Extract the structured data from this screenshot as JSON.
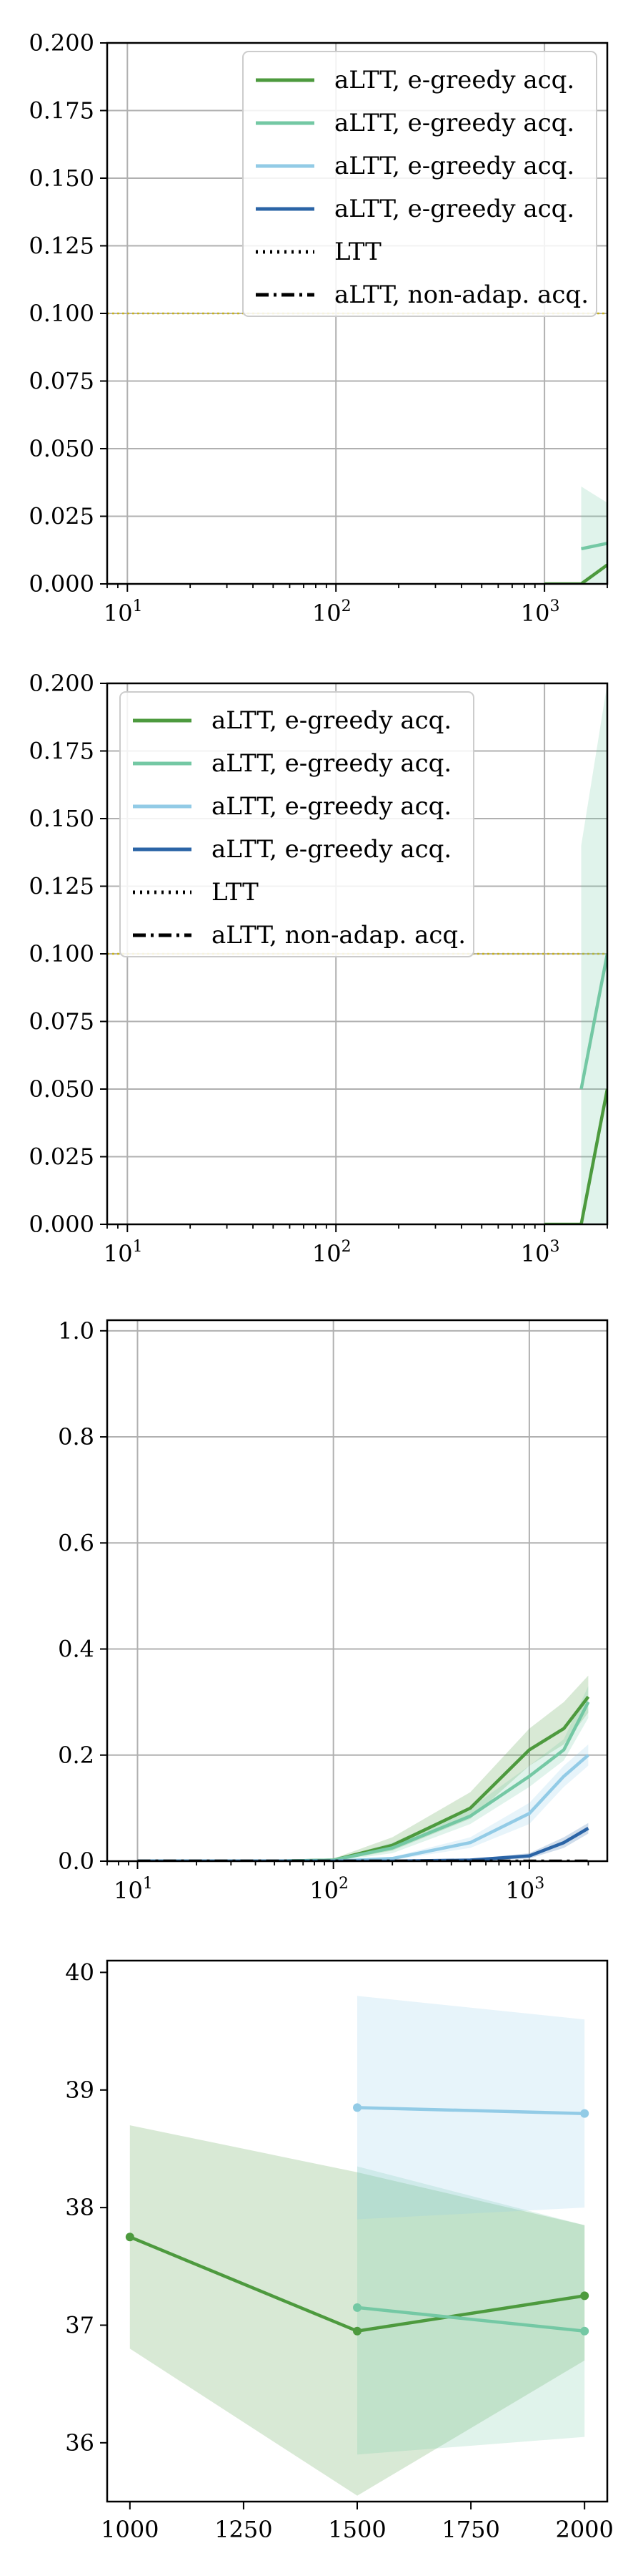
{
  "colors": {
    "green": "#4d9a3e",
    "teal": "#74c8a4",
    "lightblue": "#92cbe6",
    "darkblue": "#2b64a6",
    "threshold": "#c8b21e",
    "grid": "#b0b0b0"
  },
  "chart_data": [
    {
      "type": "line",
      "xscale": "log",
      "xlim": [
        8,
        2000
      ],
      "ylim": [
        0,
        0.2
      ],
      "xticks": [
        10,
        100,
        1000
      ],
      "xtick_labels": [
        {
          "base": "10",
          "exp": "1"
        },
        {
          "base": "10",
          "exp": "2"
        },
        {
          "base": "10",
          "exp": "3"
        }
      ],
      "yticks": [
        0,
        0.025,
        0.05,
        0.075,
        0.1,
        0.125,
        0.15,
        0.175,
        0.2
      ],
      "ytick_labels": [
        "0.000",
        "0.025",
        "0.050",
        "0.075",
        "0.100",
        "0.125",
        "0.150",
        "0.175",
        "0.200"
      ],
      "grid": true,
      "legend_position": "top-right",
      "threshold": 0.1,
      "legend": [
        {
          "label": "aLTT, e-greedy acq.",
          "style": "solid",
          "color": "green"
        },
        {
          "label": "aLTT, e-greedy acq.",
          "style": "solid",
          "color": "teal"
        },
        {
          "label": "aLTT, e-greedy acq.",
          "style": "solid",
          "color": "lightblue"
        },
        {
          "label": "aLTT, e-greedy acq.",
          "style": "solid",
          "color": "darkblue"
        },
        {
          "label": "LTT",
          "style": "dotted",
          "color": "black"
        },
        {
          "label": "aLTT, non-adap. acq.",
          "style": "dashdot",
          "color": "black"
        }
      ],
      "series": [
        {
          "color": "green",
          "x": [
            1000,
            1500,
            2000
          ],
          "y": [
            0,
            0,
            0.007
          ]
        },
        {
          "color": "teal",
          "x": [
            1500,
            2000
          ],
          "y": [
            0.013,
            0.015
          ],
          "band_lo": [
            0,
            0
          ],
          "band_hi": [
            0.036,
            0.03
          ]
        }
      ]
    },
    {
      "type": "line",
      "xscale": "log",
      "xlim": [
        8,
        2000
      ],
      "ylim": [
        0,
        0.2
      ],
      "xticks": [
        10,
        100,
        1000
      ],
      "xtick_labels": [
        {
          "base": "10",
          "exp": "1"
        },
        {
          "base": "10",
          "exp": "2"
        },
        {
          "base": "10",
          "exp": "3"
        }
      ],
      "yticks": [
        0,
        0.025,
        0.05,
        0.075,
        0.1,
        0.125,
        0.15,
        0.175,
        0.2
      ],
      "ytick_labels": [
        "0.000",
        "0.025",
        "0.050",
        "0.075",
        "0.100",
        "0.125",
        "0.150",
        "0.175",
        "0.200"
      ],
      "grid": true,
      "legend_position": "top-left",
      "threshold": 0.1,
      "legend": [
        {
          "label": "aLTT, e-greedy acq.",
          "style": "solid",
          "color": "green"
        },
        {
          "label": "aLTT, e-greedy acq.",
          "style": "solid",
          "color": "teal"
        },
        {
          "label": "aLTT, e-greedy acq.",
          "style": "solid",
          "color": "lightblue"
        },
        {
          "label": "aLTT, e-greedy acq.",
          "style": "solid",
          "color": "darkblue"
        },
        {
          "label": "LTT",
          "style": "dotted",
          "color": "black"
        },
        {
          "label": "aLTT, non-adap. acq.",
          "style": "dashdot",
          "color": "black"
        }
      ],
      "series": [
        {
          "color": "green",
          "x": [
            1000,
            1500,
            2000
          ],
          "y": [
            0,
            0,
            0.05
          ]
        },
        {
          "color": "teal",
          "x": [
            1500,
            2000
          ],
          "y": [
            0.05,
            0.1
          ],
          "band_lo": [
            0,
            0
          ],
          "band_hi": [
            0.14,
            0.2
          ]
        }
      ]
    },
    {
      "type": "line",
      "xscale": "log",
      "xlim": [
        7,
        2500
      ],
      "ylim": [
        0,
        1.02
      ],
      "xticks": [
        10,
        100,
        1000
      ],
      "xtick_labels": [
        {
          "base": "10",
          "exp": "1"
        },
        {
          "base": "10",
          "exp": "2"
        },
        {
          "base": "10",
          "exp": "3"
        }
      ],
      "yticks": [
        0,
        0.2,
        0.4,
        0.6,
        0.8,
        1.0
      ],
      "ytick_labels": [
        "0.0",
        "0.2",
        "0.4",
        "0.6",
        "0.8",
        "1.0"
      ],
      "grid": true,
      "series": [
        {
          "color": "green",
          "x": [
            10,
            20,
            50,
            100,
            200,
            500,
            1000,
            1500,
            2000
          ],
          "y": [
            0,
            0,
            0,
            0.002,
            0.03,
            0.1,
            0.21,
            0.25,
            0.31
          ],
          "band_lo": [
            0,
            0,
            0,
            0,
            0.02,
            0.08,
            0.18,
            0.22,
            0.28
          ],
          "band_hi": [
            0,
            0,
            0,
            0.005,
            0.045,
            0.13,
            0.25,
            0.3,
            0.35
          ]
        },
        {
          "color": "teal",
          "x": [
            10,
            20,
            50,
            100,
            200,
            500,
            1000,
            1500,
            2000
          ],
          "y": [
            0,
            0,
            0,
            0.002,
            0.025,
            0.085,
            0.16,
            0.21,
            0.3
          ],
          "band_lo": [
            0,
            0,
            0,
            0,
            0.015,
            0.07,
            0.14,
            0.19,
            0.27
          ],
          "band_hi": [
            0,
            0,
            0,
            0.004,
            0.035,
            0.1,
            0.18,
            0.23,
            0.33
          ]
        },
        {
          "color": "lightblue",
          "x": [
            10,
            20,
            50,
            100,
            200,
            500,
            1000,
            1500,
            2000
          ],
          "y": [
            0,
            0,
            0,
            0,
            0.005,
            0.035,
            0.09,
            0.16,
            0.2
          ],
          "band_lo": [
            0,
            0,
            0,
            0,
            0.002,
            0.025,
            0.07,
            0.14,
            0.18
          ],
          "band_hi": [
            0,
            0,
            0,
            0,
            0.008,
            0.045,
            0.11,
            0.18,
            0.22
          ]
        },
        {
          "color": "darkblue",
          "x": [
            10,
            20,
            50,
            100,
            200,
            500,
            1000,
            1500,
            2000
          ],
          "y": [
            0,
            0,
            0,
            0,
            0,
            0.002,
            0.01,
            0.035,
            0.062
          ],
          "band_lo": [
            0,
            0,
            0,
            0,
            0,
            0,
            0.005,
            0.025,
            0.052
          ],
          "band_hi": [
            0,
            0,
            0,
            0,
            0,
            0.004,
            0.015,
            0.045,
            0.072
          ]
        },
        {
          "color": "black",
          "style": "dashdot",
          "x": [
            10,
            20,
            50,
            100,
            200,
            500,
            1000,
            1500,
            2000
          ],
          "y": [
            0,
            0,
            0,
            0,
            0,
            0,
            0,
            0,
            0
          ]
        }
      ]
    },
    {
      "type": "line",
      "xscale": "linear",
      "xlim": [
        950,
        2050
      ],
      "ylim": [
        35.5,
        40.1
      ],
      "xticks": [
        1000,
        1250,
        1500,
        1750,
        2000
      ],
      "xtick_labels": [
        "1000",
        "1250",
        "1500",
        "1750",
        "2000"
      ],
      "yticks": [
        36,
        37,
        38,
        39,
        40
      ],
      "ytick_labels": [
        "36",
        "37",
        "38",
        "39",
        "40"
      ],
      "grid": false,
      "series": [
        {
          "color": "green",
          "x": [
            1000,
            1500,
            2000
          ],
          "y": [
            37.75,
            36.95,
            37.25
          ],
          "band_lo": [
            36.8,
            35.55,
            36.7
          ],
          "band_hi": [
            38.7,
            38.3,
            37.85
          ]
        },
        {
          "color": "teal",
          "x": [
            1500,
            2000
          ],
          "y": [
            37.15,
            36.95
          ],
          "band_lo": [
            35.9,
            36.05
          ],
          "band_hi": [
            38.35,
            37.85
          ]
        },
        {
          "color": "lightblue",
          "x": [
            1500,
            2000
          ],
          "y": [
            38.85,
            38.8
          ],
          "band_lo": [
            37.9,
            38.0
          ],
          "band_hi": [
            39.8,
            39.6
          ]
        }
      ]
    }
  ]
}
